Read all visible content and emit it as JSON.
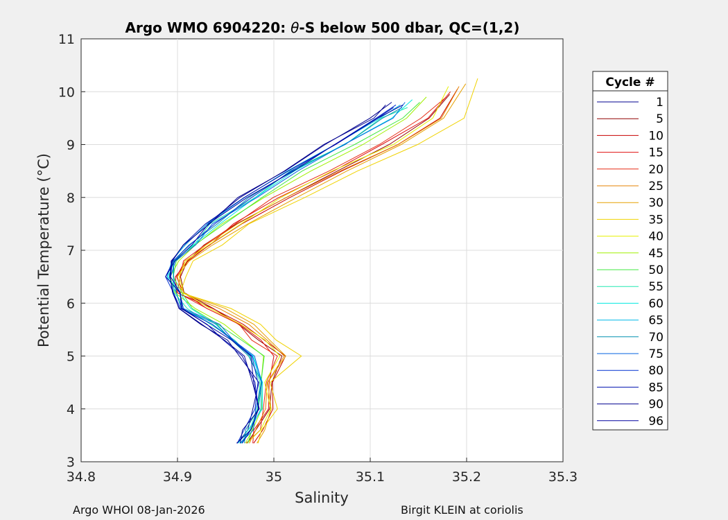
{
  "chart_data": {
    "type": "line",
    "title_prefix": "Argo WMO 6904220: ",
    "title_theta": "θ",
    "title_suffix": "-S below 500 dbar,  QC=(1,2)",
    "xlabel": "Salinity",
    "ylabel": "Potential Temperature (°C)",
    "xlim": [
      34.8,
      35.3
    ],
    "ylim": [
      3,
      11
    ],
    "xticks": [
      "34.8",
      "34.9",
      "35",
      "35.1",
      "35.2",
      "35.3"
    ],
    "yticks": [
      "3",
      "4",
      "5",
      "6",
      "7",
      "8",
      "9",
      "10",
      "11"
    ],
    "grid": true,
    "legend_title": "Cycle #",
    "legend_position": "right",
    "legend": [
      {
        "label": "1",
        "color": "#00008f"
      },
      {
        "label": "5",
        "color": "#8f0000"
      },
      {
        "label": "10",
        "color": "#c80000"
      },
      {
        "label": "15",
        "color": "#e01010"
      },
      {
        "label": "20",
        "color": "#e62a14"
      },
      {
        "label": "25",
        "color": "#e68200"
      },
      {
        "label": "30",
        "color": "#e6a000"
      },
      {
        "label": "35",
        "color": "#f0d200"
      },
      {
        "label": "40",
        "color": "#e6f000"
      },
      {
        "label": "45",
        "color": "#a0f000"
      },
      {
        "label": "50",
        "color": "#40e840"
      },
      {
        "label": "55",
        "color": "#20e8b0"
      },
      {
        "label": "60",
        "color": "#00e8e0"
      },
      {
        "label": "65",
        "color": "#00b8e8"
      },
      {
        "label": "70",
        "color": "#0090b0"
      },
      {
        "label": "75",
        "color": "#0060e0"
      },
      {
        "label": "80",
        "color": "#0030d0"
      },
      {
        "label": "85",
        "color": "#0010b0"
      },
      {
        "label": "90",
        "color": "#000090"
      },
      {
        "label": "96",
        "color": "#0000a0"
      }
    ],
    "base_profile": {
      "theta": [
        3.35,
        3.6,
        4.0,
        4.5,
        5.0,
        5.3,
        5.6,
        5.9,
        6.2,
        6.5,
        6.8,
        7.1,
        7.5,
        8.0,
        8.5,
        9.0,
        9.5,
        9.8
      ],
      "salinity": [
        34.967,
        34.975,
        34.985,
        34.985,
        34.98,
        34.96,
        34.94,
        34.91,
        34.9,
        34.893,
        34.9,
        34.915,
        34.94,
        34.98,
        35.025,
        35.075,
        35.12,
        35.14
      ]
    },
    "series": [
      {
        "name": "1",
        "theta_top": 9.75,
        "salinity_offset": -0.02
      },
      {
        "name": "5",
        "theta_top": 9.95,
        "salinity_offset": 0.045
      },
      {
        "name": "10",
        "theta_top": 10.05,
        "salinity_offset": 0.05
      },
      {
        "name": "15",
        "theta_top": 10.0,
        "salinity_offset": 0.04
      },
      {
        "name": "20",
        "theta_top": 9.9,
        "salinity_offset": 0.035
      },
      {
        "name": "25",
        "theta_top": 10.1,
        "salinity_offset": 0.05
      },
      {
        "name": "30",
        "theta_top": 10.15,
        "salinity_offset": 0.06
      },
      {
        "name": "35",
        "theta_top": 10.25,
        "salinity_offset": 0.075
      },
      {
        "name": "40",
        "theta_top": 10.1,
        "salinity_offset": 0.045
      },
      {
        "name": "45",
        "theta_top": 9.9,
        "salinity_offset": 0.02
      },
      {
        "name": "50",
        "theta_top": 9.8,
        "salinity_offset": 0.01
      },
      {
        "name": "55",
        "theta_top": 9.7,
        "salinity_offset": -0.005
      },
      {
        "name": "60",
        "theta_top": 9.85,
        "salinity_offset": 0.0
      },
      {
        "name": "65",
        "theta_top": 9.75,
        "salinity_offset": -0.01
      },
      {
        "name": "70",
        "theta_top": 9.7,
        "salinity_offset": -0.005
      },
      {
        "name": "75",
        "theta_top": 9.8,
        "salinity_offset": 0.0
      },
      {
        "name": "80",
        "theta_top": 9.75,
        "salinity_offset": -0.01
      },
      {
        "name": "85",
        "theta_top": 9.7,
        "salinity_offset": -0.015
      },
      {
        "name": "90",
        "theta_top": 9.8,
        "salinity_offset": -0.02
      },
      {
        "name": "96",
        "theta_top": 9.75,
        "salinity_offset": -0.01
      }
    ]
  },
  "footer": {
    "left": "Argo WHOI 08-Jan-2026",
    "right": "Birgit KLEIN at coriolis"
  }
}
